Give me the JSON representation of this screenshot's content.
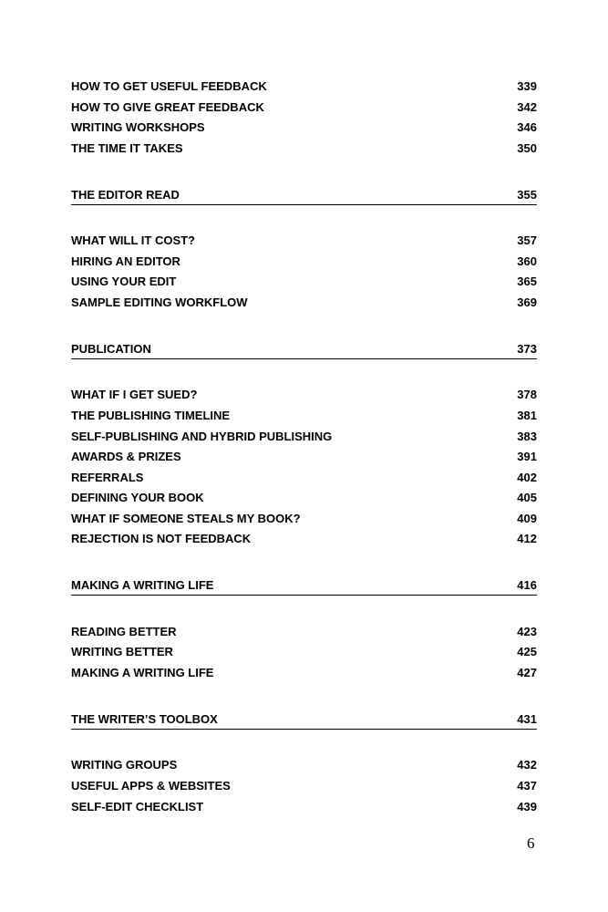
{
  "toc": [
    {
      "type": "entry",
      "title": "HOW TO GET USEFUL FEEDBACK",
      "page": "339"
    },
    {
      "type": "entry",
      "title": "HOW TO GIVE GREAT FEEDBACK",
      "page": "342"
    },
    {
      "type": "entry",
      "title": "WRITING WORKSHOPS",
      "page": "346"
    },
    {
      "type": "entry",
      "title": "THE TIME IT TAKES",
      "page": "350"
    },
    {
      "type": "section",
      "title": "THE EDITOR READ",
      "page": "355"
    },
    {
      "type": "entry",
      "title": "WHAT WILL IT COST?",
      "page": "357"
    },
    {
      "type": "entry",
      "title": "HIRING AN EDITOR",
      "page": "360"
    },
    {
      "type": "entry",
      "title": "USING YOUR EDIT",
      "page": "365"
    },
    {
      "type": "entry",
      "title": "SAMPLE EDITING WORKFLOW",
      "page": "369"
    },
    {
      "type": "section",
      "title": "PUBLICATION",
      "page": "373"
    },
    {
      "type": "entry",
      "title": "WHAT IF I GET SUED?",
      "page": "378"
    },
    {
      "type": "entry",
      "title": "THE PUBLISHING TIMELINE",
      "page": "381"
    },
    {
      "type": "entry",
      "title": "SELF-PUBLISHING AND HYBRID PUBLISHING",
      "page": "383"
    },
    {
      "type": "entry",
      "title": "AWARDS & PRIZES",
      "page": "391"
    },
    {
      "type": "entry",
      "title": "REFERRALS",
      "page": "402"
    },
    {
      "type": "entry",
      "title": "DEFINING YOUR BOOK",
      "page": "405"
    },
    {
      "type": "entry",
      "title": "WHAT IF SOMEONE STEALS MY BOOK?",
      "page": "409"
    },
    {
      "type": "entry",
      "title": "REJECTION IS NOT FEEDBACK",
      "page": "412"
    },
    {
      "type": "section",
      "title": "MAKING A WRITING LIFE",
      "page": "416"
    },
    {
      "type": "entry",
      "title": "READING BETTER",
      "page": "423"
    },
    {
      "type": "entry",
      "title": "WRITING BETTER",
      "page": "425"
    },
    {
      "type": "entry",
      "title": "MAKING A WRITING LIFE",
      "page": "427"
    },
    {
      "type": "section",
      "title": "THE WRITER’S TOOLBOX",
      "page": "431"
    },
    {
      "type": "entry",
      "title": "WRITING GROUPS",
      "page": "432"
    },
    {
      "type": "entry",
      "title": "USEFUL APPS & WEBSITES",
      "page": "437"
    },
    {
      "type": "entry",
      "title": "SELF-EDIT CHECKLIST",
      "page": "439"
    }
  ],
  "page_number": "6"
}
